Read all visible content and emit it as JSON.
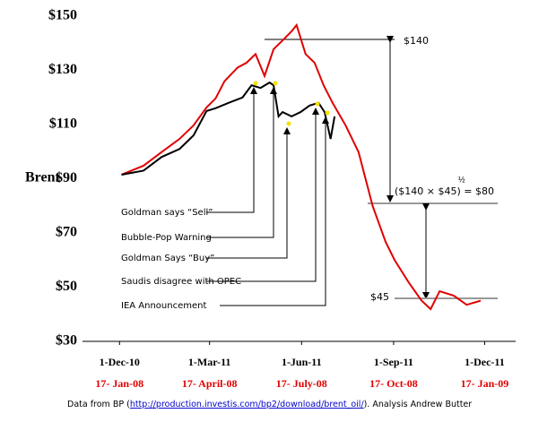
{
  "chart_data": {
    "type": "line",
    "y_axis_label": "Brent",
    "ylim": [
      30,
      150
    ],
    "yticks": [
      {
        "value": 30,
        "label": "$30"
      },
      {
        "value": 50,
        "label": "$50"
      },
      {
        "value": 70,
        "label": "$70"
      },
      {
        "value": 90,
        "label": "$90"
      },
      {
        "value": 110,
        "label": "$110"
      },
      {
        "value": 130,
        "label": "$130"
      },
      {
        "value": 150,
        "label": "$150"
      }
    ],
    "xlim": [
      -37,
      396
    ],
    "xticks": [
      {
        "value": 0,
        "label": "1-Dec-10"
      },
      {
        "value": 90,
        "label": "1-Mar-11"
      },
      {
        "value": 182,
        "label": "1-Jun-11"
      },
      {
        "value": 274,
        "label": "1-Sep-11"
      },
      {
        "value": 365,
        "label": "1-Dec-11"
      }
    ],
    "x_labels_2008": [
      "17- Jan-08",
      "17- April-08",
      "17- July-08",
      "17- Oct-08",
      "17- Jan-09"
    ],
    "series": [
      {
        "color": "#e00000",
        "x": [
          2,
          24,
          42,
          60,
          74,
          87,
          96,
          105,
          118,
          127,
          136,
          145,
          154,
          163,
          172,
          177,
          186,
          195,
          204,
          213,
          226,
          239,
          253,
          266,
          275,
          289,
          302,
          311,
          320,
          334,
          347,
          361
        ],
        "values": [
          91.5,
          94.8,
          99.8,
          104.7,
          109.7,
          116.3,
          119.6,
          126,
          131,
          132.8,
          136,
          127.9,
          137.8,
          141,
          144.4,
          146.7,
          136,
          132.8,
          124.5,
          118,
          109.7,
          99.8,
          80,
          66.7,
          60,
          51.8,
          45,
          41.9,
          48.5,
          46.9,
          43.5,
          45
        ]
      },
      {
        "color": "#000000",
        "x": [
          2,
          24,
          42,
          60,
          74,
          87,
          96,
          109,
          123,
          132,
          141,
          150,
          154,
          159,
          163,
          172,
          181,
          190,
          199,
          205,
          211,
          215
        ],
        "values": [
          91.5,
          93,
          98,
          101,
          106,
          115,
          116,
          118,
          120,
          124.5,
          123.5,
          125.5,
          124.5,
          113,
          114.6,
          113,
          114.6,
          117,
          118,
          114.6,
          104.7,
          113
        ]
      }
    ],
    "events": [
      "Goldman says “Sell”",
      "Bubble-Pop Warning",
      "Goldman Says “Buy”",
      "Saudis disagree with OPEC",
      "IEA Announcement"
    ],
    "annotations": {
      "high": "$140",
      "mid": "($140 × $45) = $80",
      "mid_exponent": "½",
      "low": "$45"
    },
    "footnote": {
      "before": "Data from BP (",
      "link": "http://production.investis.com/bp2/download/brent_oil/",
      "after": "). Analysis Andrew Butter"
    }
  }
}
